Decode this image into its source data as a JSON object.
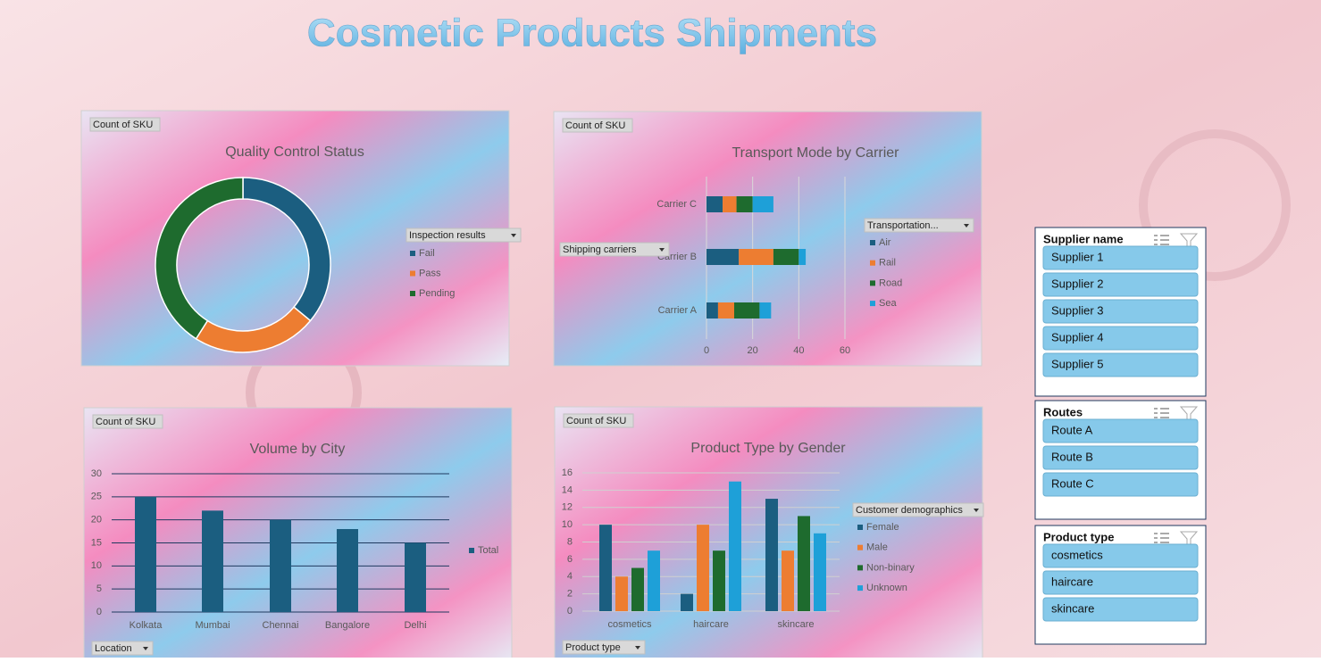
{
  "title": "Cosmetic Products Shipments",
  "chart_data": [
    {
      "type": "pie",
      "title": "Quality Control Status",
      "value_field": "Count of SKU",
      "legend_field": "Inspection results",
      "categories": [
        "Fail",
        "Pass",
        "Pending"
      ],
      "values": [
        36,
        23,
        41
      ],
      "colors": [
        "#1b5e80",
        "#ed7d31",
        "#1e6b2e"
      ],
      "donut": true
    },
    {
      "type": "bar",
      "orientation": "horizontal",
      "stacked": true,
      "title": "Transport Mode by Carrier",
      "value_field": "Count of SKU",
      "axis_field": "Shipping carriers",
      "legend_field": "Transportation...",
      "categories": [
        "Carrier A",
        "Carrier B",
        "Carrier C"
      ],
      "series": [
        {
          "name": "Air",
          "color": "#1b5e80",
          "values": [
            5,
            14,
            7
          ]
        },
        {
          "name": "Rail",
          "color": "#ed7d31",
          "values": [
            7,
            15,
            6
          ]
        },
        {
          "name": "Road",
          "color": "#1e6b2e",
          "values": [
            11,
            11,
            7
          ]
        },
        {
          "name": "Sea",
          "color": "#1ea0d8",
          "values": [
            5,
            3,
            9
          ]
        }
      ],
      "xlim": [
        0,
        60
      ],
      "xticks": [
        0,
        20,
        40,
        60
      ],
      "grid": true
    },
    {
      "type": "bar",
      "orientation": "vertical",
      "stacked": false,
      "title": "Volume by City",
      "value_field": "Count of SKU",
      "axis_field": "Location",
      "categories": [
        "Kolkata",
        "Mumbai",
        "Chennai",
        "Bangalore",
        "Delhi"
      ],
      "series": [
        {
          "name": "Total",
          "color": "#1b5e80",
          "values": [
            25,
            22,
            20,
            18,
            15
          ]
        }
      ],
      "ylim": [
        0,
        30
      ],
      "yticks": [
        0,
        5,
        10,
        15,
        20,
        25,
        30
      ],
      "grid": true
    },
    {
      "type": "bar",
      "orientation": "vertical",
      "stacked": false,
      "title": "Product Type by Gender",
      "value_field": "Count of SKU",
      "axis_field": "Product type",
      "legend_field": "Customer demographics",
      "categories": [
        "cosmetics",
        "haircare",
        "skincare"
      ],
      "series": [
        {
          "name": "Female",
          "color": "#1b5e80",
          "values": [
            10,
            2,
            13
          ]
        },
        {
          "name": "Male",
          "color": "#ed7d31",
          "values": [
            4,
            10,
            7
          ]
        },
        {
          "name": "Non-binary",
          "color": "#1e6b2e",
          "values": [
            5,
            7,
            11
          ]
        },
        {
          "name": "Unknown",
          "color": "#1ea0d8",
          "values": [
            7,
            15,
            9
          ]
        }
      ],
      "ylim": [
        0,
        16
      ],
      "yticks": [
        0,
        2,
        4,
        6,
        8,
        10,
        12,
        14,
        16
      ],
      "grid": true
    }
  ],
  "slicers": [
    {
      "title": "Supplier name",
      "items": [
        "Supplier 1",
        "Supplier 2",
        "Supplier 3",
        "Supplier 4",
        "Supplier 5"
      ]
    },
    {
      "title": "Routes",
      "items": [
        "Route A",
        "Route B",
        "Route C"
      ]
    },
    {
      "title": "Product type",
      "items": [
        "cosmetics",
        "haircare",
        "skincare"
      ]
    }
  ]
}
